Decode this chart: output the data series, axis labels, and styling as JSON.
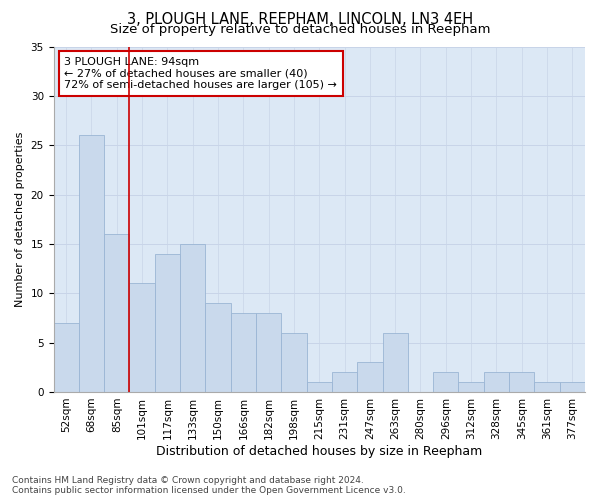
{
  "title": "3, PLOUGH LANE, REEPHAM, LINCOLN, LN3 4EH",
  "subtitle": "Size of property relative to detached houses in Reepham",
  "xlabel": "Distribution of detached houses by size in Reepham",
  "ylabel": "Number of detached properties",
  "categories": [
    "52sqm",
    "68sqm",
    "85sqm",
    "101sqm",
    "117sqm",
    "133sqm",
    "150sqm",
    "166sqm",
    "182sqm",
    "198sqm",
    "215sqm",
    "231sqm",
    "247sqm",
    "263sqm",
    "280sqm",
    "296sqm",
    "312sqm",
    "328sqm",
    "345sqm",
    "361sqm",
    "377sqm"
  ],
  "values": [
    7,
    26,
    16,
    11,
    14,
    15,
    9,
    8,
    8,
    6,
    1,
    2,
    3,
    6,
    0,
    2,
    1,
    2,
    2,
    1,
    1
  ],
  "bar_color": "#c9d9ec",
  "bar_edge_color": "#9ab5d4",
  "vline_color": "#cc0000",
  "annotation_text": "3 PLOUGH LANE: 94sqm\n← 27% of detached houses are smaller (40)\n72% of semi-detached houses are larger (105) →",
  "annotation_box_color": "#ffffff",
  "annotation_box_edge_color": "#cc0000",
  "ylim": [
    0,
    35
  ],
  "yticks": [
    0,
    5,
    10,
    15,
    20,
    25,
    30,
    35
  ],
  "grid_color": "#c8d4e8",
  "background_color": "#dce8f5",
  "title_fontsize": 10.5,
  "subtitle_fontsize": 9.5,
  "xlabel_fontsize": 9,
  "ylabel_fontsize": 8,
  "tick_fontsize": 7.5,
  "annotation_fontsize": 8,
  "footer_fontsize": 6.5,
  "footer_text": "Contains HM Land Registry data © Crown copyright and database right 2024.\nContains public sector information licensed under the Open Government Licence v3.0."
}
